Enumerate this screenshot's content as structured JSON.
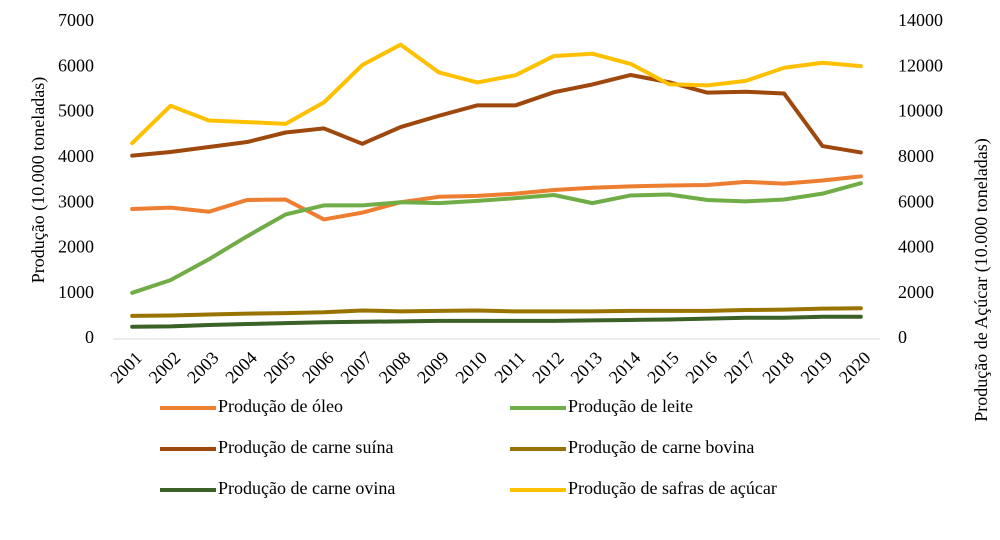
{
  "chart_data": {
    "type": "line",
    "categories": [
      "2001",
      "2002",
      "2003",
      "2004",
      "2005",
      "2006",
      "2007",
      "2008",
      "2009",
      "2010",
      "2011",
      "2012",
      "2013",
      "2014",
      "2015",
      "2016",
      "2017",
      "2018",
      "2019",
      "2020"
    ],
    "ylabel": "Produção (10.000 toneladas)",
    "y2label": "Produção de Açúcar (10.000 toneladas)",
    "ylim": [
      0,
      7000
    ],
    "yticks": [
      0,
      1000,
      2000,
      3000,
      4000,
      5000,
      6000,
      7000
    ],
    "y2lim": [
      0,
      14000
    ],
    "y2ticks": [
      0,
      2000,
      4000,
      6000,
      8000,
      10000,
      12000,
      14000
    ],
    "grid": false,
    "legend": "bottom",
    "series": [
      {
        "name": "Produção de óleo",
        "color": "#ed7d31",
        "values": [
          2870,
          2900,
          2810,
          3070,
          3080,
          2640,
          2790,
          3020,
          3140,
          3160,
          3210,
          3290,
          3340,
          3370,
          3390,
          3400,
          3470,
          3430,
          3500,
          3590
        ]
      },
      {
        "name": "Produção de leite",
        "color": "#70ad47",
        "values": [
          1020,
          1300,
          1760,
          2270,
          2750,
          2950,
          2950,
          3020,
          3000,
          3050,
          3110,
          3180,
          3000,
          3170,
          3190,
          3070,
          3040,
          3080,
          3210,
          3440
        ]
      },
      {
        "name": "Produção de carne suína",
        "color": "#9e480e",
        "values": [
          4050,
          4130,
          4240,
          4350,
          4560,
          4650,
          4310,
          4680,
          4930,
          5160,
          5160,
          5450,
          5620,
          5830,
          5670,
          5440,
          5460,
          5420,
          4260,
          4120
        ]
      },
      {
        "name": "Produção de carne bovina",
        "color": "#997300",
        "values": [
          510,
          520,
          540,
          560,
          570,
          590,
          630,
          610,
          620,
          630,
          610,
          610,
          610,
          620,
          620,
          620,
          640,
          650,
          670,
          680
        ]
      },
      {
        "name": "Produção de carne ovina",
        "color": "#3b6127",
        "values": [
          270,
          280,
          310,
          330,
          350,
          370,
          380,
          390,
          400,
          400,
          400,
          400,
          410,
          420,
          430,
          450,
          470,
          470,
          490,
          490
        ]
      },
      {
        "name": "Produção de safras de açúcar",
        "color": "#ffc000",
        "axis": "y2",
        "values": [
          8650,
          10300,
          9650,
          9580,
          9500,
          10450,
          12100,
          13000,
          11770,
          11330,
          11650,
          12500,
          12600,
          12150,
          11250,
          11200,
          11400,
          11980,
          12200,
          12050
        ]
      }
    ]
  }
}
